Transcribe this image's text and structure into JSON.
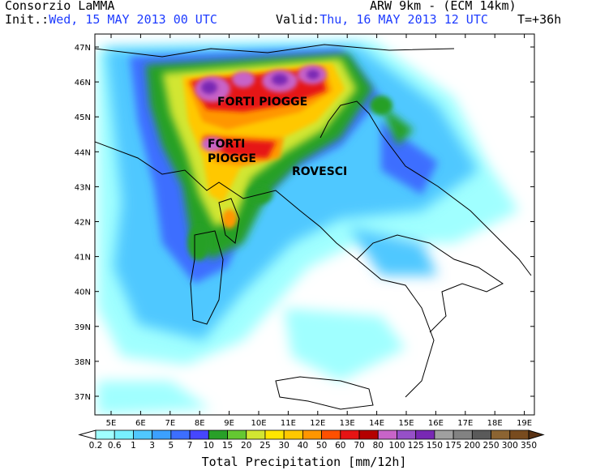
{
  "header": {
    "org": "Consorzio LaMMA",
    "model": "ARW 9km - (ECM 14km)",
    "init_label": "Init.:",
    "init_value": "Wed, 15 MAY 2013  00 UTC",
    "valid_label": "Valid:",
    "valid_value": "Thu, 16 MAY 2013  12 UTC",
    "lead_time": "T=+36h"
  },
  "map": {
    "lat_labels": [
      "47N",
      "46N",
      "45N",
      "44N",
      "43N",
      "42N",
      "41N",
      "40N",
      "39N",
      "38N",
      "37N"
    ],
    "lon_labels": [
      "5E",
      "6E",
      "7E",
      "8E",
      "9E",
      "10E",
      "11E",
      "12E",
      "13E",
      "14E",
      "15E",
      "16E",
      "17E",
      "18E",
      "19E"
    ],
    "annotations": [
      "FORTI PIOGGE",
      "FORTI",
      "PIOGGE",
      "ROVESCI"
    ]
  },
  "legend": {
    "title": "Total Precipitation [mm/12h]",
    "levels": [
      "0.2",
      "0.6",
      "1",
      "3",
      "5",
      "7",
      "10",
      "15",
      "20",
      "25",
      "30",
      "40",
      "50",
      "60",
      "70",
      "80",
      "100",
      "125",
      "150",
      "175",
      "200",
      "250",
      "300",
      "350"
    ],
    "colors": [
      "#a0ffff",
      "#78f0ff",
      "#50c8ff",
      "#3ca0ff",
      "#3c6eff",
      "#4646ff",
      "#28a028",
      "#64c832",
      "#d2e632",
      "#ffe600",
      "#ffc800",
      "#ff9600",
      "#ff5000",
      "#e61414",
      "#b40000",
      "#c864c8",
      "#9650c8",
      "#7828b4",
      "#a0a0a0",
      "#828282",
      "#5a5a5a",
      "#8c6432",
      "#784b1e",
      "#5a3214"
    ]
  }
}
